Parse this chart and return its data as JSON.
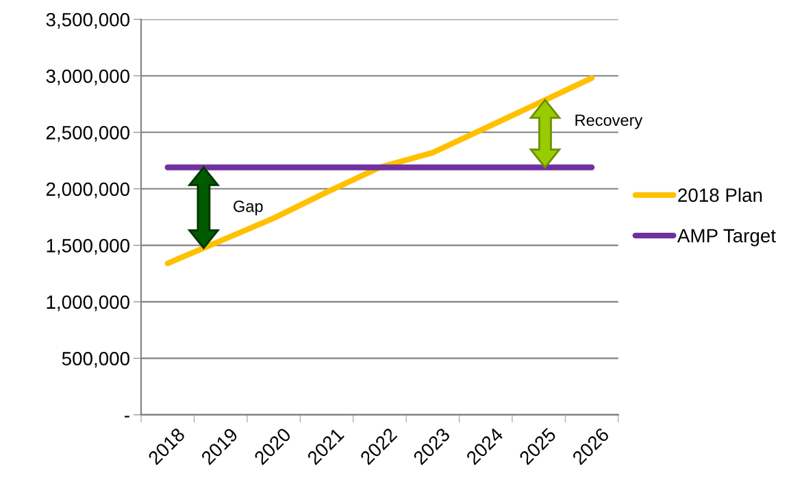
{
  "chart_data": {
    "type": "line",
    "categories": [
      "2018",
      "2019",
      "2020",
      "2021",
      "2022",
      "2023",
      "2024",
      "2025",
      "2026"
    ],
    "series": [
      {
        "name": "2018 Plan",
        "color": "#ffc000",
        "values": [
          1340000,
          1540000,
          1740000,
          1970000,
          2190000,
          2320000,
          2540000,
          2760000,
          2980000
        ]
      },
      {
        "name": "AMP Target",
        "color": "#7030a0",
        "values": [
          2190000,
          2190000,
          2190000,
          2190000,
          2190000,
          2190000,
          2190000,
          2190000,
          2190000
        ]
      }
    ],
    "ylim": [
      0,
      3500000
    ],
    "yticks": [
      {
        "value": 0,
        "label": "-"
      },
      {
        "value": 500000,
        "label": "500,000"
      },
      {
        "value": 1000000,
        "label": "1,000,000"
      },
      {
        "value": 1500000,
        "label": "1,500,000"
      },
      {
        "value": 2000000,
        "label": "2,000,000"
      },
      {
        "value": 2500000,
        "label": "2,500,000"
      },
      {
        "value": 3000000,
        "label": "3,000,000"
      },
      {
        "value": 3500000,
        "label": "3,500,000"
      }
    ],
    "grid": "y",
    "legend": "right",
    "marker": "none",
    "line_style": "solid",
    "annotations": [
      "Gap",
      "Recovery"
    ]
  }
}
